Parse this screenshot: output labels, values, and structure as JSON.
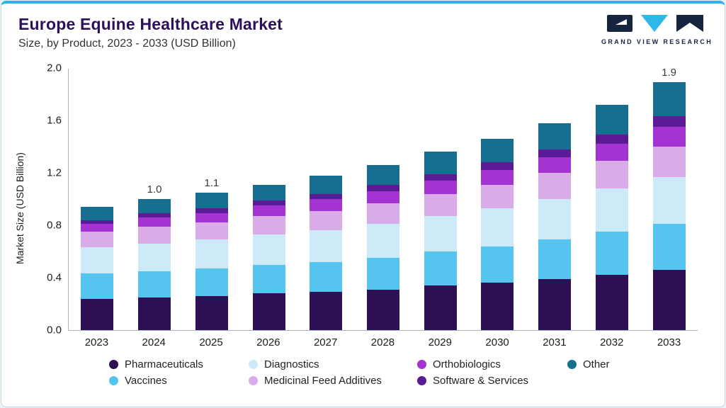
{
  "header": {
    "title": "Europe Equine Healthcare Market",
    "subtitle": "Size, by Product, 2023 - 2033 (USD Billion)"
  },
  "logo": {
    "text": "GRAND VIEW RESEARCH"
  },
  "chart_data": {
    "type": "bar",
    "stacked": true,
    "title": "Europe Equine Healthcare Market Size, by Product, 2023 - 2033 (USD Billion)",
    "xlabel": "",
    "ylabel": "Market Size (USD Billion)",
    "ylim": [
      0,
      2.0
    ],
    "yticks": [
      "0.0",
      "0.4",
      "0.8",
      "1.2",
      "1.6",
      "2.0"
    ],
    "grid": false,
    "legend_position": "bottom",
    "categories": [
      "2023",
      "2024",
      "2025",
      "2026",
      "2027",
      "2028",
      "2029",
      "2030",
      "2031",
      "2032",
      "2033"
    ],
    "series": [
      {
        "name": "Pharmaceuticals",
        "color": "#2e1054",
        "values": [
          0.24,
          0.25,
          0.26,
          0.28,
          0.29,
          0.31,
          0.34,
          0.36,
          0.39,
          0.42,
          0.46
        ]
      },
      {
        "name": "Vaccines",
        "color": "#55c4ee",
        "values": [
          0.19,
          0.2,
          0.21,
          0.22,
          0.23,
          0.24,
          0.26,
          0.28,
          0.3,
          0.33,
          0.35
        ]
      },
      {
        "name": "Diagnostics",
        "color": "#cdeaf8",
        "values": [
          0.2,
          0.21,
          0.22,
          0.23,
          0.24,
          0.26,
          0.27,
          0.29,
          0.31,
          0.33,
          0.36
        ]
      },
      {
        "name": "Medicinal Feed Additives",
        "color": "#d9abe9",
        "values": [
          0.12,
          0.13,
          0.13,
          0.14,
          0.15,
          0.16,
          0.17,
          0.18,
          0.2,
          0.21,
          0.23
        ]
      },
      {
        "name": "Orthobiologics",
        "color": "#a434d2",
        "values": [
          0.06,
          0.07,
          0.07,
          0.08,
          0.09,
          0.09,
          0.1,
          0.11,
          0.12,
          0.13,
          0.15
        ]
      },
      {
        "name": "Software & Services",
        "color": "#5b1b96",
        "values": [
          0.03,
          0.03,
          0.04,
          0.04,
          0.04,
          0.05,
          0.05,
          0.06,
          0.06,
          0.07,
          0.08
        ]
      },
      {
        "name": "Other",
        "color": "#166f90",
        "values": [
          0.1,
          0.11,
          0.12,
          0.12,
          0.14,
          0.15,
          0.17,
          0.18,
          0.2,
          0.23,
          0.26
        ]
      }
    ],
    "totals": [
      0.94,
      1.0,
      1.05,
      1.11,
      1.18,
      1.26,
      1.36,
      1.46,
      1.58,
      1.72,
      1.89
    ],
    "bar_labels": {
      "2024": "1.0",
      "2025": "1.1",
      "2033": "1.9"
    },
    "legend": [
      {
        "label": "Pharmaceuticals",
        "color": "#2e1054"
      },
      {
        "label": "Diagnostics",
        "color": "#cdeaf8"
      },
      {
        "label": "Orthobiologics",
        "color": "#a434d2"
      },
      {
        "label": "Other",
        "color": "#166f90"
      },
      {
        "label": "Vaccines",
        "color": "#55c4ee"
      },
      {
        "label": "Medicinal Feed Additives",
        "color": "#d9abe9"
      },
      {
        "label": "Software & Services",
        "color": "#5b1b96"
      }
    ]
  }
}
